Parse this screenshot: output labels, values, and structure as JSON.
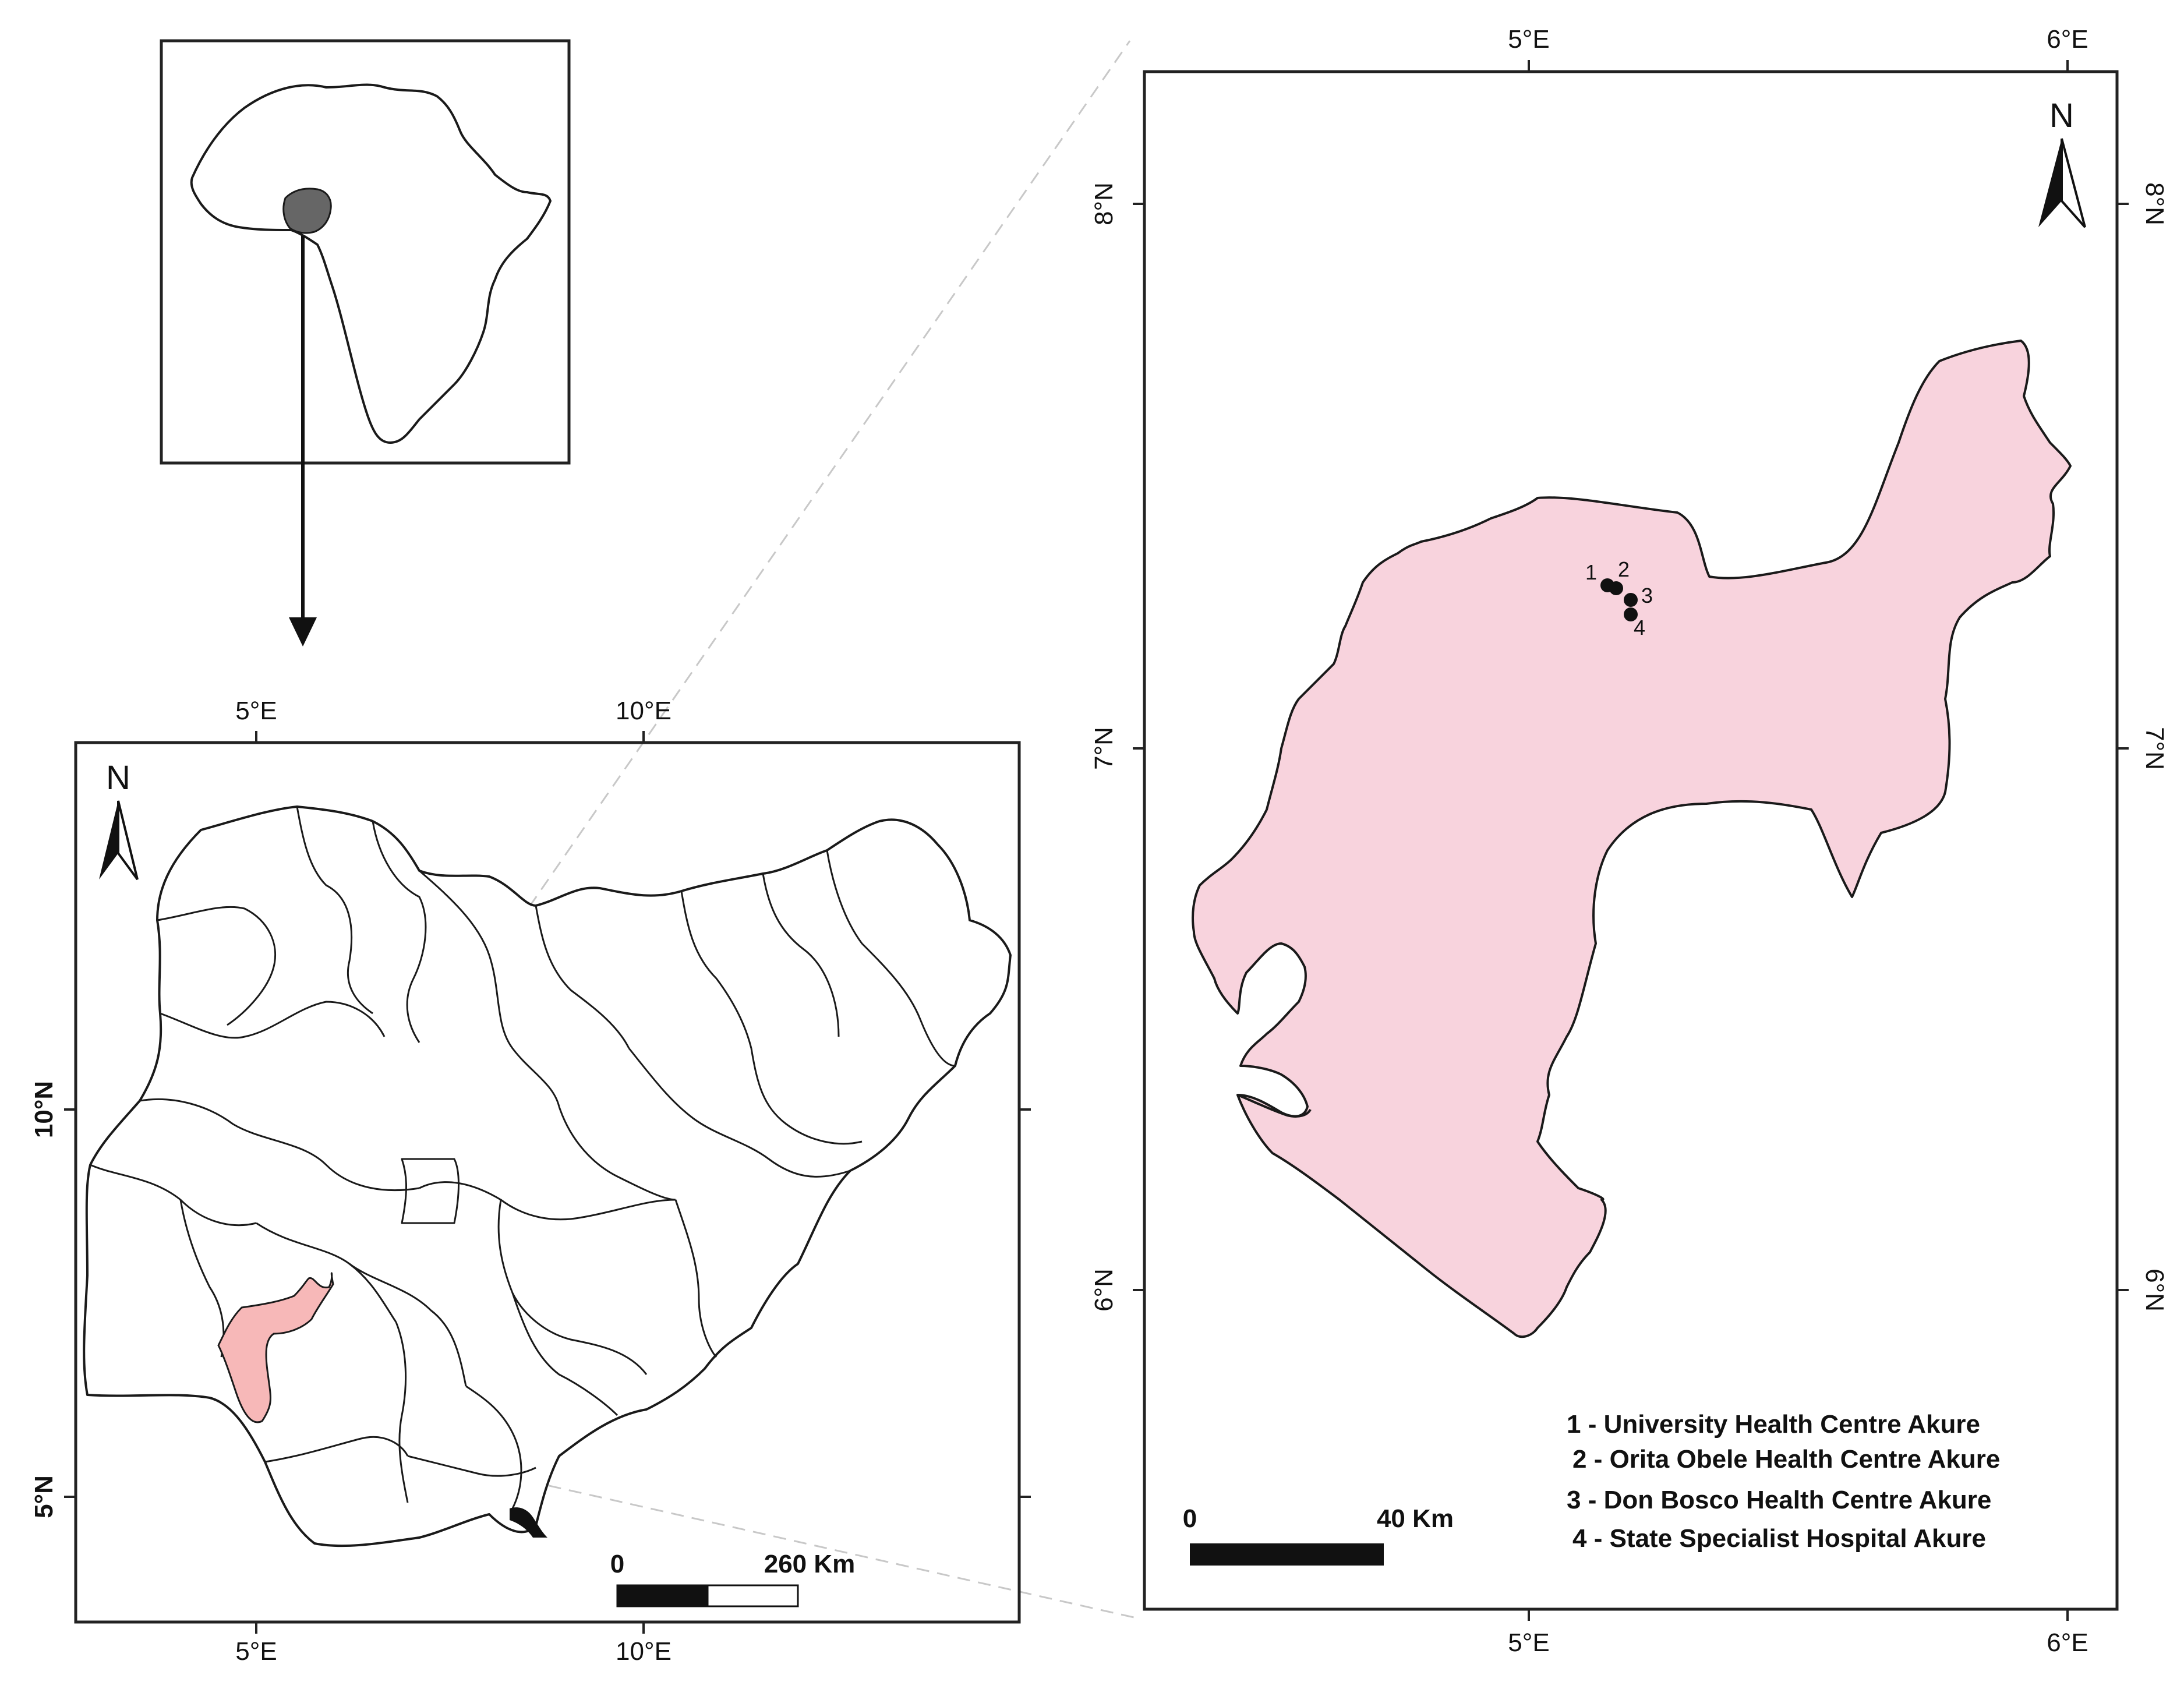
{
  "colors": {
    "study_area_fill": "#f8d3dd",
    "nigeria_highlight": "#f7b8b8",
    "africa_nigeria_fill": "#666666",
    "outline": "#1a1a1a"
  },
  "inset_africa": {
    "highlight_country": "Nigeria",
    "arrow": "down"
  },
  "nigeria_map": {
    "north_label": "N",
    "top_ticks": [
      "5°E",
      "10°E"
    ],
    "bottom_ticks": [
      "5°E",
      "10°E"
    ],
    "left_ticks": [
      "10°N",
      "5°N"
    ],
    "scale": {
      "start": "0",
      "end": "260 Km"
    }
  },
  "study_map": {
    "north_label": "N",
    "top_ticks": [
      "5°E",
      "6°E"
    ],
    "bottom_ticks": [
      "5°E",
      "6°E"
    ],
    "left_ticks": [
      "8°N",
      "7°N",
      "6°N"
    ],
    "right_ticks": [
      "8°N",
      "7°N",
      "6°N"
    ],
    "scale": {
      "start": "0",
      "end": "40 Km"
    },
    "point_labels": [
      "1",
      "2",
      "3",
      "4"
    ],
    "legend": [
      "1 - University Health Centre Akure",
      "2 - Orita Obele Health Centre Akure",
      "3 - Don Bosco Health Centre Akure",
      "4 - State Specialist Hospital Akure"
    ]
  }
}
